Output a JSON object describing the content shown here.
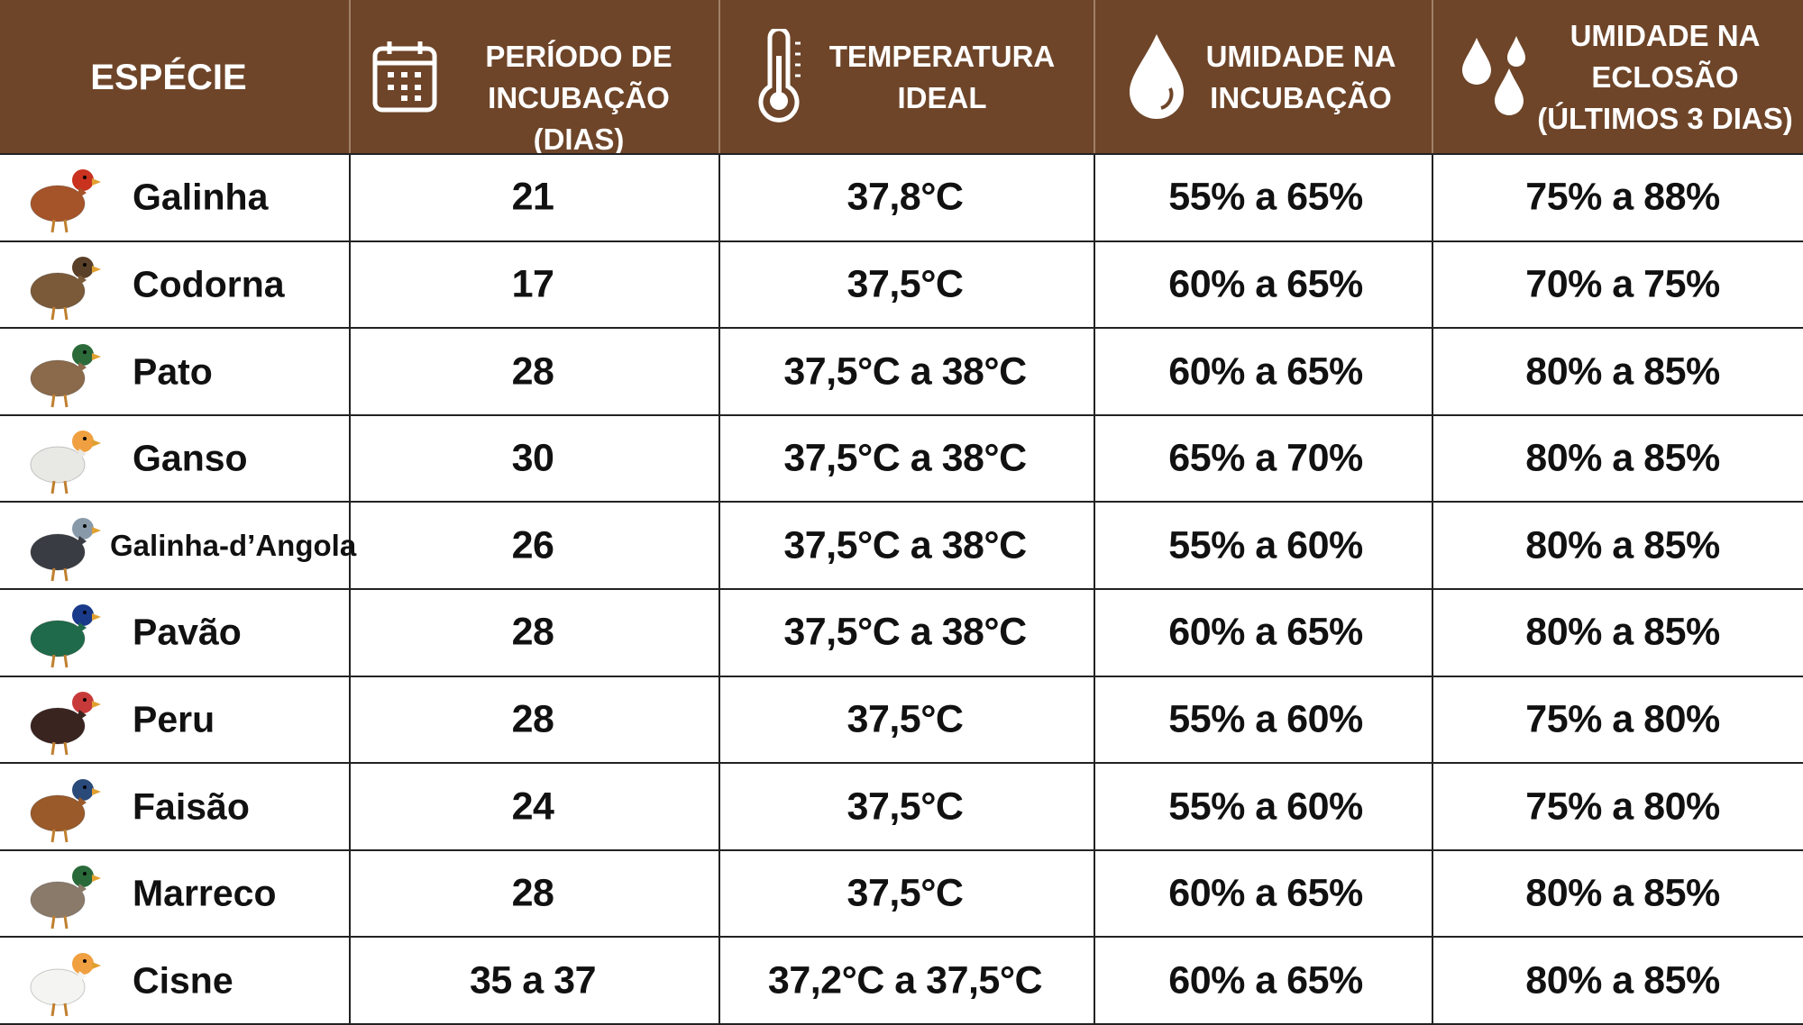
{
  "table": {
    "header": [
      {
        "lines": [
          "ESPÉCIE"
        ]
      },
      {
        "lines": [
          "PERÍODO DE",
          "INCUBAÇÃO (DIAS)"
        ]
      },
      {
        "lines": [
          "TEMPERATURA",
          "IDEAL"
        ]
      },
      {
        "lines": [
          "UMIDADE NA",
          "INCUBAÇÃO"
        ]
      },
      {
        "lines": [
          "UMIDADE NA",
          "ECLOSÃO",
          "(ÚLTIMOS 3 DIAS)"
        ]
      }
    ],
    "rows": [
      [
        "Galinha",
        "21",
        "37,8°C",
        "55% a 65%",
        "75% a 88%"
      ],
      [
        "Codorna",
        "17",
        "37,5°C",
        "60% a 65%",
        "70% a 75%"
      ],
      [
        "Pato",
        "28",
        "37,5°C a 38°C",
        "60% a 65%",
        "80% a 85%"
      ],
      [
        "Ganso",
        "30",
        "37,5°C a 38°C",
        "65% a 70%",
        "80% a 85%"
      ],
      [
        "Galinha-d’Angola",
        "26",
        "37,5°C a 38°C",
        "55% a 60%",
        "80% a 85%"
      ],
      [
        "Pavão",
        "28",
        "37,5°C a 38°C",
        "60% a 65%",
        "80% a 85%"
      ],
      [
        "Peru",
        "28",
        "37,5°C",
        "55% a 60%",
        "75% a 80%"
      ],
      [
        "Faisão",
        "24",
        "37,5°C",
        "55% a 60%",
        "75% a 80%"
      ],
      [
        "Marreco",
        "28",
        "37,5°C",
        "60% a 65%",
        "80% a 85%"
      ],
      [
        "Cisne",
        "35 a 37",
        "37,2°C a 37,5°C",
        "60% a 65%",
        "80% a 85%"
      ]
    ]
  }
}
